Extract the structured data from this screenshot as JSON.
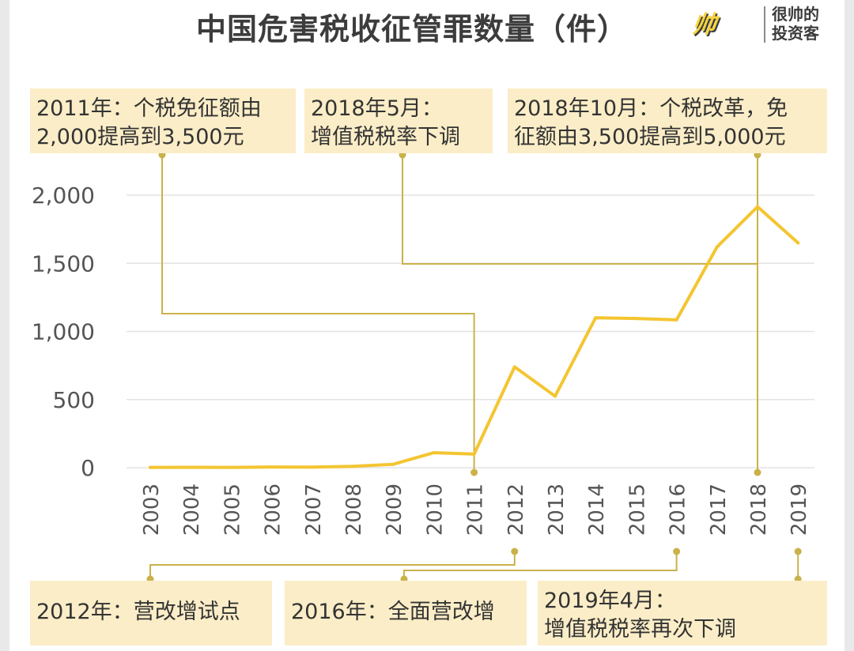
{
  "header": {
    "title": "中国危害税收征管罪数量（件）",
    "logo_mark": "帅",
    "logo_line1": "很帅的",
    "logo_line2": "投资客"
  },
  "annotations": {
    "a2011": {
      "line1": "2011年：个税免征额由",
      "line2": "2,000提高到3,500元"
    },
    "a2018may": {
      "line1": "2018年5月：",
      "line2": "增值税税率下调"
    },
    "a2018oct": {
      "line1": "2018年10月：个税改革，免",
      "line2": "征额由3,500提高到5,000元"
    },
    "a2012": {
      "line1": "2012年：营改增试点"
    },
    "a2016": {
      "line1": "2016年：全面营改增"
    },
    "a2019": {
      "line1": "2019年4月：",
      "line2": "增值税税率再次下调"
    }
  },
  "colors": {
    "line": "#f4c531",
    "connector": "#c9b24a",
    "grid": "#e3e3e3",
    "axis_text": "#555555",
    "annotation_bg": "#fbedc7"
  },
  "chart_data": {
    "type": "line",
    "title": "中国危害税收征管罪数量（件）",
    "x": [
      "2003",
      "2004",
      "2005",
      "2006",
      "2007",
      "2008",
      "2009",
      "2010",
      "2011",
      "2012",
      "2013",
      "2014",
      "2015",
      "2016",
      "2017",
      "2018",
      "2019"
    ],
    "series": [
      {
        "values": [
          2,
          3,
          2,
          5,
          4,
          10,
          25,
          110,
          100,
          740,
          525,
          1100,
          1095,
          1085,
          1620,
          1915,
          1650
        ]
      }
    ],
    "yticks": [
      0,
      500,
      1000,
      1500,
      2000
    ],
    "ytick_labels": [
      "0",
      "500",
      "1,000",
      "1,500",
      "2,000"
    ],
    "ylim": [
      0,
      2000
    ],
    "grid": "horizontal",
    "xlabel": "",
    "ylabel": ""
  }
}
